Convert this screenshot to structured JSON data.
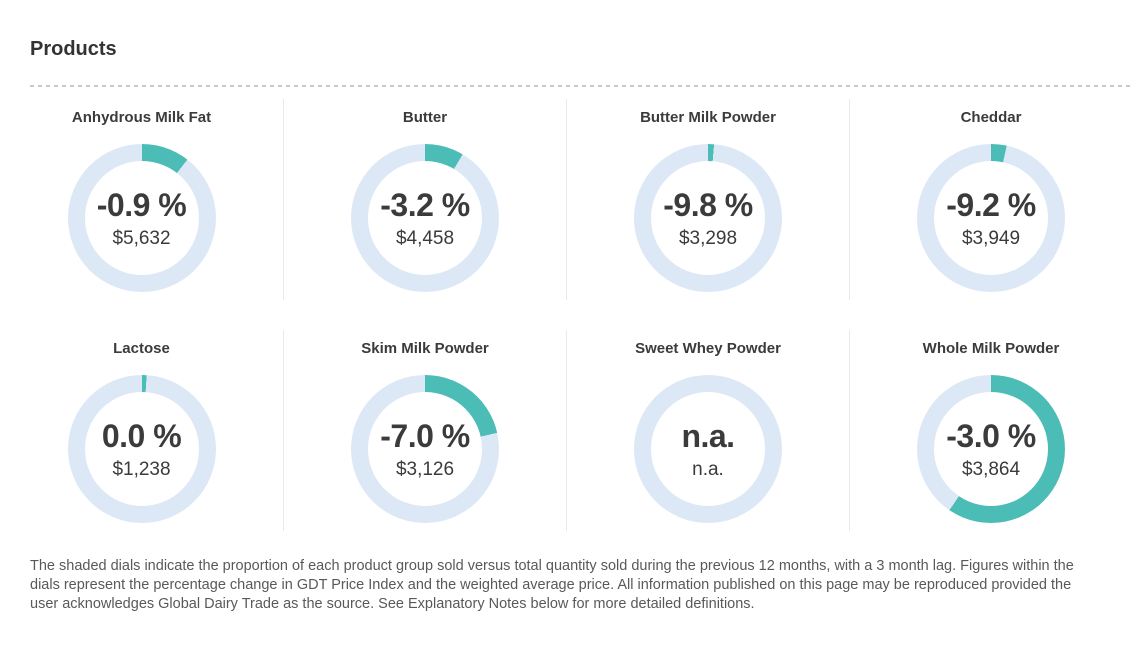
{
  "page": {
    "title": "Products",
    "footer": "The shaded dials indicate the proportion of each product group sold versus total quantity sold during the previous 12 months, with a 3 month lag. Figures within the dials represent the percentage change in GDT Price Index and the weighted average price. All information published on this page may be reproduced provided the user acknowledges Global Dairy Trade as the source. See Explanatory Notes below for more detailed definitions."
  },
  "colors": {
    "accent_teal": "#4cbdb6",
    "ring_light_blue": "#dde8f6",
    "text_dark": "#3b3b3b",
    "footer_gray": "#58595b",
    "divider_gray": "#e9e9e9",
    "dash_gray": "#c9c9c9"
  },
  "chart_data": {
    "type": "donut-grid",
    "title": "Products",
    "description": "Each dial is a donut chart; the teal arc starts at 12 o'clock and shows the share of quantity sold; center shows GDT Price Index % change and weighted average price.",
    "legend_position": "none",
    "products": [
      {
        "name": "Anhydrous Milk Fat",
        "pct_change": "-0.9 %",
        "price": "$5,632",
        "share_pct": 10.5
      },
      {
        "name": "Butter",
        "pct_change": "-3.2 %",
        "price": "$4,458",
        "share_pct": 8.5
      },
      {
        "name": "Butter Milk Powder",
        "pct_change": "-9.8 %",
        "price": "$3,298",
        "share_pct": 1.3
      },
      {
        "name": "Cheddar",
        "pct_change": "-9.2 %",
        "price": "$3,949",
        "share_pct": 3.4
      },
      {
        "name": "Lactose",
        "pct_change": "0.0 %",
        "price": "$1,238",
        "share_pct": 1.0
      },
      {
        "name": "Skim Milk Powder",
        "pct_change": "-7.0 %",
        "price": "$3,126",
        "share_pct": 21.5
      },
      {
        "name": "Sweet Whey Powder",
        "pct_change": "n.a.",
        "price": "n.a.",
        "share_pct": 0
      },
      {
        "name": "Whole Milk Powder",
        "pct_change": "-3.0 %",
        "price": "$3,864",
        "share_pct": 59.5
      }
    ]
  }
}
